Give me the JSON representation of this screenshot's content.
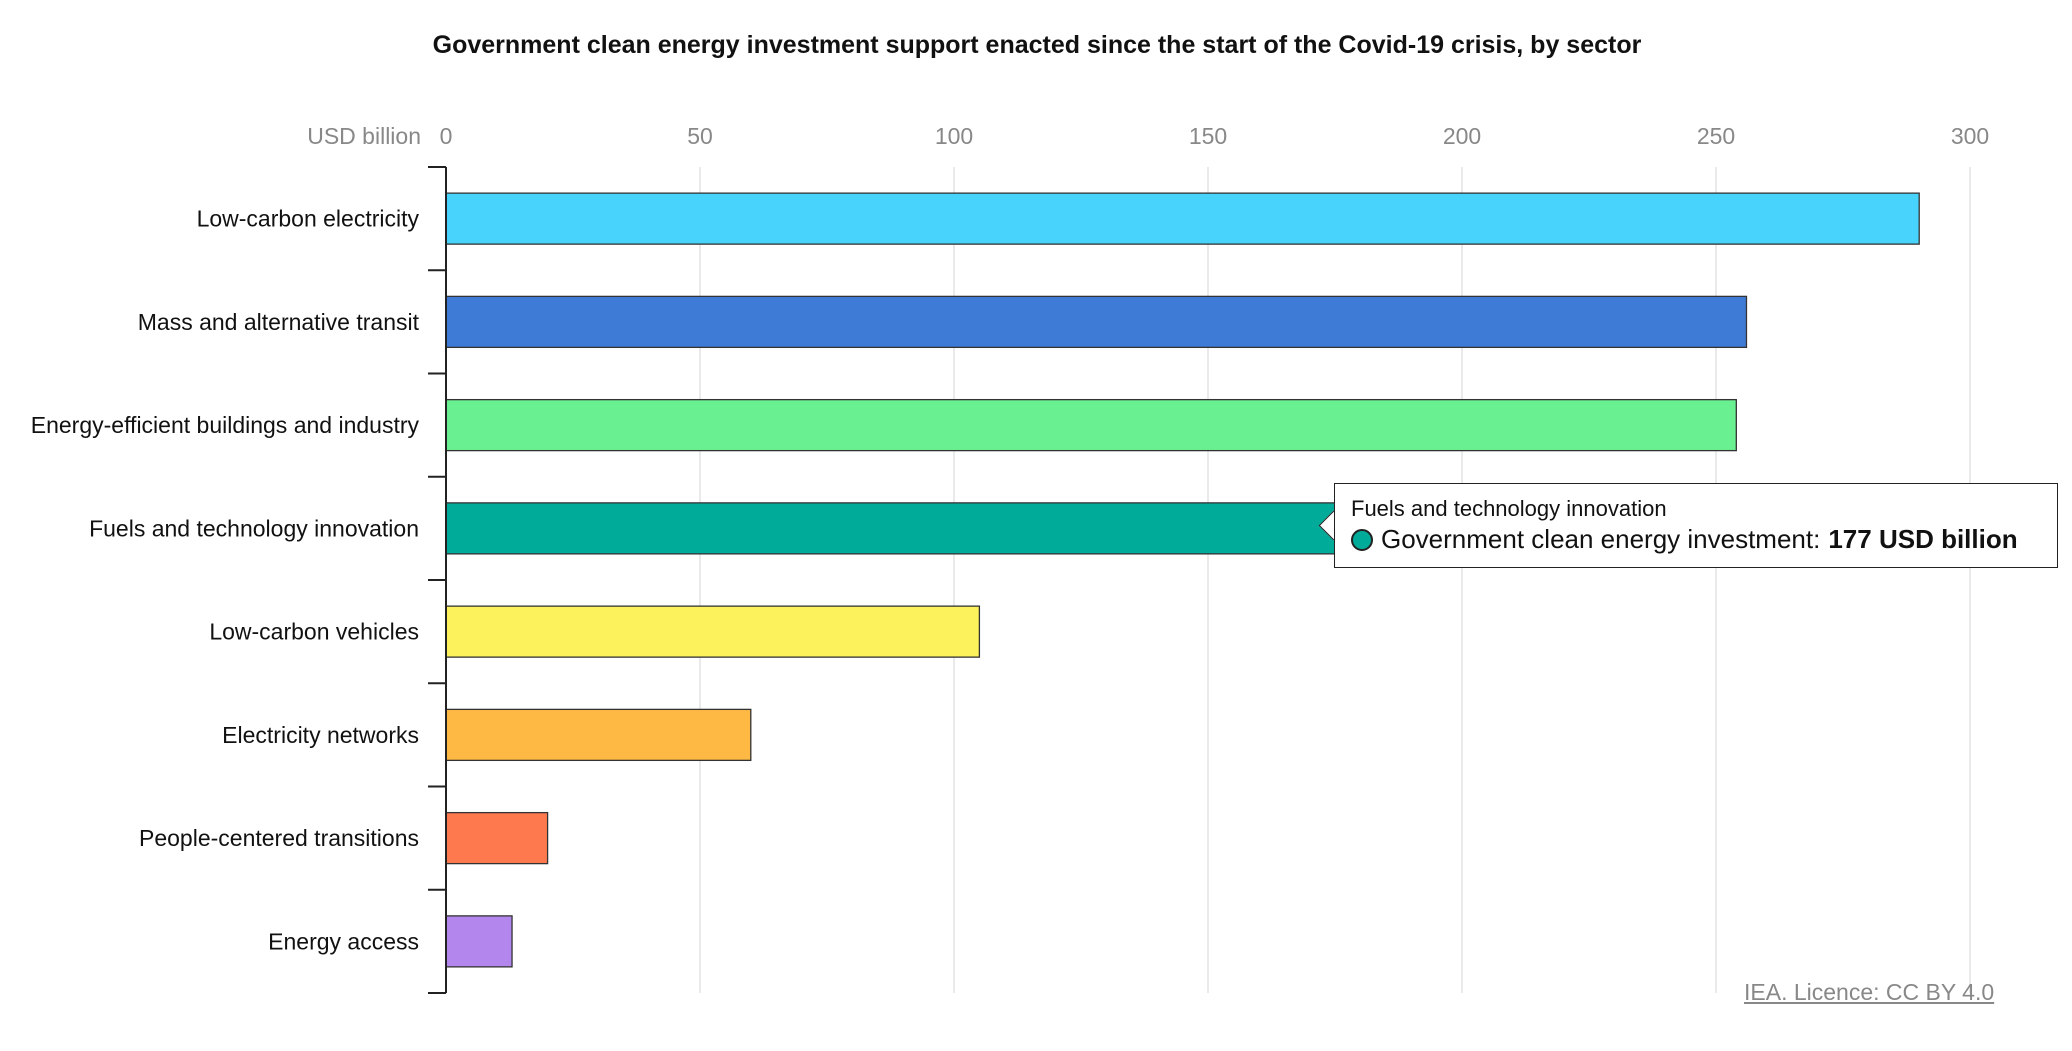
{
  "chart_data": {
    "type": "bar",
    "orientation": "horizontal",
    "title": "Government clean energy investment support enacted since the start of the Covid-19 crisis, by sector",
    "unit_label": "USD billion",
    "xlim": [
      0,
      300
    ],
    "ticks": [
      0,
      50,
      100,
      150,
      200,
      250,
      300
    ],
    "grid": true,
    "categories": [
      "Low-carbon electricity",
      "Mass and alternative transit",
      "Energy-efficient buildings and industry",
      "Fuels and technology innovation",
      "Low-carbon vehicles",
      "Electricity networks",
      "People-centered transitions",
      "Energy access"
    ],
    "series": [
      {
        "values": [
          290,
          256,
          254,
          177,
          105,
          60,
          20,
          13
        ],
        "colors": [
          "#48d3fc",
          "#3e7bd6",
          "#69f090",
          "#00ab9a",
          "#fcf25b",
          "#feb844",
          "#fe7a4e",
          "#b286ed"
        ]
      }
    ]
  },
  "tooltip": {
    "category": "Fuels and technology innovation",
    "series_label": "Government clean energy investment:",
    "value_text": "177 USD billion",
    "dot_color": "#00ab9a"
  },
  "licence": "IEA. Licence: CC BY 4.0"
}
